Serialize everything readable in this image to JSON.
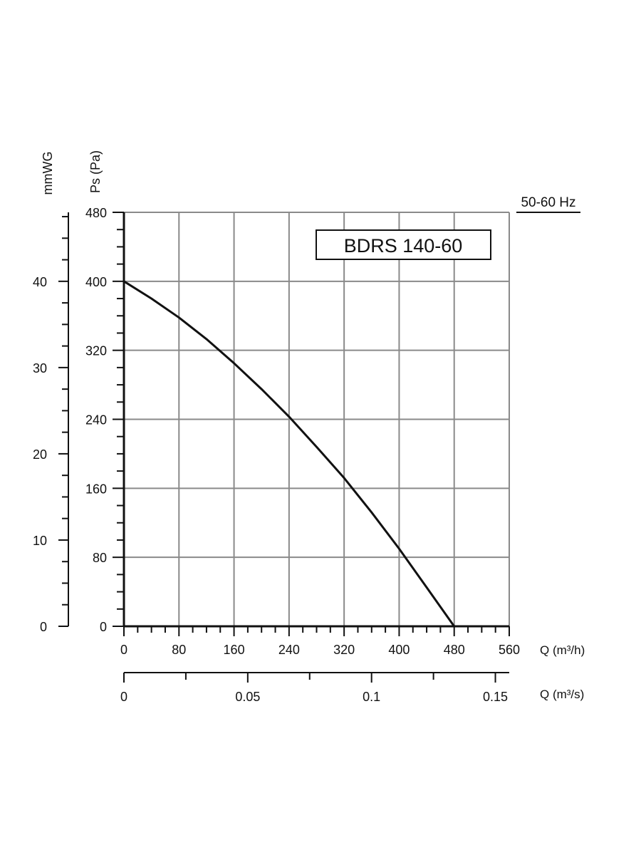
{
  "chart_data": {
    "type": "line",
    "model_label": "BDRS 140-60",
    "frequency_label": "50-60 Hz",
    "ylabel_pa": "Ps (Pa)",
    "ylabel_mmwg": "mmWG",
    "xlabel_m3h": "Q (m³/h)",
    "xlabel_m3s": "Q (m³/s)",
    "xlim_m3h": [
      0,
      560
    ],
    "ylim_pa": [
      0,
      480
    ],
    "ylim_mmwg": [
      0,
      48
    ],
    "xlim_m3s": [
      0,
      0.1556
    ],
    "x_ticks_m3h": [
      0,
      80,
      160,
      240,
      320,
      400,
      480,
      560
    ],
    "y_ticks_pa": [
      0,
      80,
      160,
      240,
      320,
      400,
      480
    ],
    "y_ticks_mmwg": [
      0,
      10,
      20,
      30,
      40
    ],
    "x_ticks_m3s": [
      0,
      0.05,
      0.1,
      0.15
    ],
    "x_tick_labels_m3h": [
      "0",
      "80",
      "160",
      "240",
      "320",
      "400",
      "480",
      "560"
    ],
    "y_tick_labels_pa": [
      "0",
      "80",
      "160",
      "240",
      "320",
      "400",
      "480"
    ],
    "y_tick_labels_mmwg": [
      "0",
      "10",
      "20",
      "30",
      "40"
    ],
    "x_tick_labels_m3s": [
      "0",
      "0.05",
      "0.1",
      "0.15"
    ],
    "grid": true,
    "series": [
      {
        "x": [
          0,
          40,
          80,
          120,
          160,
          200,
          240,
          280,
          320,
          360,
          400,
          440,
          480
        ],
        "y": [
          400,
          380,
          358,
          333,
          305,
          275,
          243,
          208,
          172,
          132,
          90,
          45,
          0
        ]
      }
    ]
  }
}
